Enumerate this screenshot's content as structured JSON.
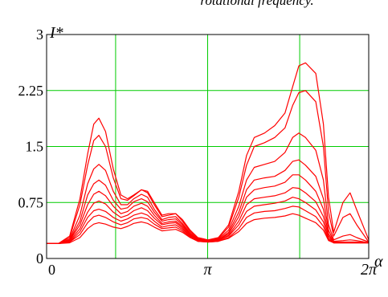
{
  "caption": "rotational frequency.",
  "chart_data": {
    "type": "line",
    "xlabel": "α",
    "ylabel": "I*",
    "xlim": [
      0,
      6.2832
    ],
    "ylim": [
      0,
      3
    ],
    "x_ticks": [
      {
        "value": 0,
        "label": "0"
      },
      {
        "value": 3.1416,
        "label": "π"
      },
      {
        "value": 6.2832,
        "label": "2π"
      }
    ],
    "y_ticks": [
      {
        "value": 0,
        "label": "0"
      },
      {
        "value": 0.75,
        "label": "0.75"
      },
      {
        "value": 1.5,
        "label": "1.5"
      },
      {
        "value": 2.25,
        "label": "2.25"
      },
      {
        "value": 3,
        "label": "3"
      }
    ],
    "grid": true,
    "grid_x": [
      0,
      1.3464,
      3.1416,
      4.9368,
      6.2832
    ],
    "grid_y": [
      0,
      0.75,
      1.5,
      2.25,
      3
    ],
    "line_color": "#ff0000",
    "grid_color": "#00cc00",
    "x": [
      0,
      0.23,
      0.45,
      0.65,
      0.8,
      0.92,
      1.02,
      1.15,
      1.3,
      1.45,
      1.58,
      1.7,
      1.85,
      1.97,
      2.1,
      2.25,
      2.38,
      2.52,
      2.65,
      2.8,
      2.95,
      3.15,
      3.35,
      3.55,
      3.75,
      3.9,
      4.05,
      4.25,
      4.45,
      4.65,
      4.8,
      4.92,
      5.05,
      5.25,
      5.4,
      5.5,
      5.6,
      5.78,
      5.92,
      6.05,
      6.2832
    ],
    "series": [
      {
        "values": [
          0.2,
          0.2,
          0.3,
          0.8,
          1.4,
          1.8,
          1.88,
          1.7,
          1.2,
          0.85,
          0.8,
          0.85,
          0.92,
          0.9,
          0.75,
          0.58,
          0.6,
          0.6,
          0.52,
          0.38,
          0.28,
          0.25,
          0.28,
          0.45,
          0.9,
          1.38,
          1.62,
          1.68,
          1.78,
          1.95,
          2.3,
          2.58,
          2.62,
          2.48,
          1.8,
          0.82,
          0.35,
          0.75,
          0.88,
          0.65,
          0.25
        ]
      },
      {
        "values": [
          0.2,
          0.2,
          0.28,
          0.72,
          1.25,
          1.58,
          1.65,
          1.5,
          1.08,
          0.8,
          0.78,
          0.84,
          0.92,
          0.88,
          0.72,
          0.56,
          0.58,
          0.6,
          0.5,
          0.36,
          0.27,
          0.24,
          0.27,
          0.42,
          0.82,
          1.25,
          1.5,
          1.55,
          1.62,
          1.75,
          2.05,
          2.22,
          2.25,
          2.1,
          1.5,
          0.62,
          0.3,
          0.55,
          0.6,
          0.45,
          0.22
        ]
      },
      {
        "values": [
          0.2,
          0.2,
          0.26,
          0.58,
          1.0,
          1.2,
          1.26,
          1.18,
          0.9,
          0.72,
          0.72,
          0.8,
          0.86,
          0.82,
          0.66,
          0.52,
          0.55,
          0.56,
          0.47,
          0.34,
          0.26,
          0.23,
          0.26,
          0.38,
          0.7,
          1.05,
          1.22,
          1.26,
          1.3,
          1.42,
          1.62,
          1.68,
          1.62,
          1.45,
          1.05,
          0.45,
          0.25,
          0.3,
          0.32,
          0.28,
          0.22
        ]
      },
      {
        "values": [
          0.2,
          0.2,
          0.25,
          0.5,
          0.85,
          1.0,
          1.05,
          0.98,
          0.78,
          0.66,
          0.68,
          0.76,
          0.8,
          0.76,
          0.62,
          0.5,
          0.52,
          0.53,
          0.45,
          0.33,
          0.25,
          0.23,
          0.25,
          0.35,
          0.62,
          0.92,
          1.05,
          1.08,
          1.1,
          1.18,
          1.3,
          1.32,
          1.25,
          1.1,
          0.8,
          0.38,
          0.23,
          0.24,
          0.25,
          0.24,
          0.21
        ]
      },
      {
        "values": [
          0.2,
          0.2,
          0.24,
          0.45,
          0.72,
          0.86,
          0.9,
          0.84,
          0.7,
          0.6,
          0.63,
          0.7,
          0.74,
          0.7,
          0.58,
          0.47,
          0.49,
          0.5,
          0.43,
          0.32,
          0.25,
          0.23,
          0.25,
          0.33,
          0.56,
          0.82,
          0.92,
          0.95,
          0.97,
          1.02,
          1.12,
          1.12,
          1.05,
          0.9,
          0.66,
          0.33,
          0.22,
          0.22,
          0.22,
          0.22,
          0.21
        ]
      },
      {
        "values": [
          0.2,
          0.2,
          0.23,
          0.4,
          0.62,
          0.74,
          0.77,
          0.73,
          0.62,
          0.55,
          0.58,
          0.64,
          0.68,
          0.64,
          0.54,
          0.45,
          0.47,
          0.48,
          0.41,
          0.31,
          0.24,
          0.22,
          0.24,
          0.31,
          0.5,
          0.72,
          0.8,
          0.82,
          0.84,
          0.88,
          0.95,
          0.94,
          0.88,
          0.76,
          0.56,
          0.3,
          0.21,
          0.21,
          0.21,
          0.21,
          0.21
        ]
      },
      {
        "values": [
          0.2,
          0.2,
          0.22,
          0.36,
          0.55,
          0.64,
          0.66,
          0.63,
          0.55,
          0.5,
          0.53,
          0.58,
          0.61,
          0.58,
          0.5,
          0.42,
          0.44,
          0.45,
          0.39,
          0.3,
          0.24,
          0.22,
          0.24,
          0.3,
          0.45,
          0.63,
          0.7,
          0.72,
          0.74,
          0.77,
          0.82,
          0.8,
          0.75,
          0.65,
          0.49,
          0.27,
          0.21,
          0.21,
          0.21,
          0.21,
          0.21
        ]
      },
      {
        "values": [
          0.2,
          0.2,
          0.22,
          0.32,
          0.48,
          0.56,
          0.58,
          0.55,
          0.49,
          0.45,
          0.48,
          0.53,
          0.55,
          0.53,
          0.46,
          0.4,
          0.41,
          0.42,
          0.37,
          0.29,
          0.23,
          0.22,
          0.23,
          0.28,
          0.4,
          0.55,
          0.61,
          0.63,
          0.64,
          0.67,
          0.7,
          0.69,
          0.64,
          0.56,
          0.43,
          0.25,
          0.21,
          0.21,
          0.21,
          0.21,
          0.21
        ]
      },
      {
        "values": [
          0.2,
          0.2,
          0.21,
          0.28,
          0.4,
          0.46,
          0.48,
          0.46,
          0.42,
          0.4,
          0.43,
          0.47,
          0.49,
          0.47,
          0.42,
          0.37,
          0.38,
          0.39,
          0.35,
          0.28,
          0.23,
          0.22,
          0.23,
          0.27,
          0.36,
          0.47,
          0.52,
          0.54,
          0.55,
          0.57,
          0.6,
          0.58,
          0.54,
          0.48,
          0.38,
          0.24,
          0.21,
          0.21,
          0.21,
          0.21,
          0.21
        ]
      }
    ]
  }
}
